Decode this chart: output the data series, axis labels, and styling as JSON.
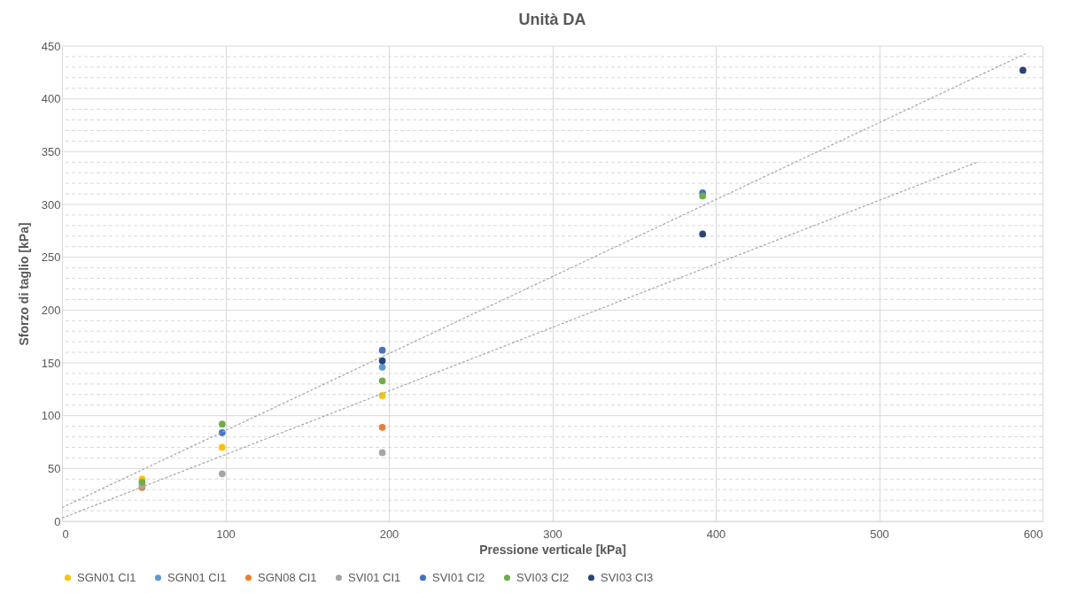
{
  "chart_data": {
    "type": "scatter",
    "title": "Unità DA",
    "xlabel": "Pressione verticale [kPa]",
    "ylabel": "Sforzo di taglio [kPa]",
    "xlim": [
      0,
      600
    ],
    "xticks": [
      0,
      100,
      200,
      300,
      400,
      500,
      600
    ],
    "ylim": [
      0,
      450
    ],
    "yticks": [
      0,
      {
        "value": 10,
        "label": null
      },
      {
        "value": 20,
        "label": null
      },
      {
        "value": 30,
        "label": null
      },
      {
        "value": 40,
        "label": null
      },
      50,
      {
        "value": 60,
        "label": null
      },
      {
        "value": 70,
        "label": null
      },
      {
        "value": 80,
        "label": null
      },
      {
        "value": 90,
        "label": null
      },
      100,
      {
        "value": 110,
        "label": null
      },
      {
        "value": 120,
        "label": null
      },
      {
        "value": 130,
        "label": null
      },
      {
        "value": 140,
        "label": null
      },
      150,
      {
        "value": 160,
        "label": null
      },
      {
        "value": 170,
        "label": null
      },
      {
        "value": 180,
        "label": null
      },
      {
        "value": 190,
        "label": null
      },
      200,
      {
        "value": 210,
        "label": null
      },
      {
        "value": 220,
        "label": null
      },
      {
        "value": 230,
        "label": null
      },
      {
        "value": 240,
        "label": null
      },
      250,
      {
        "value": 260,
        "label": null
      },
      {
        "value": 270,
        "label": null
      },
      {
        "value": 280,
        "label": null
      },
      {
        "value": 290,
        "label": null
      },
      300,
      {
        "value": 310,
        "label": null
      },
      {
        "value": 320,
        "label": null
      },
      {
        "value": 330,
        "label": null
      },
      {
        "value": 340,
        "label": null
      },
      350,
      {
        "value": 360,
        "label": null
      },
      {
        "value": 370,
        "label": null
      },
      {
        "value": 380,
        "label": null
      },
      {
        "value": 390,
        "label": null
      },
      400,
      {
        "value": 410,
        "label": null
      },
      {
        "value": 420,
        "label": null
      },
      {
        "value": 430,
        "label": null
      },
      {
        "value": 440,
        "label": null
      },
      450
    ],
    "grid": true,
    "legend": "bottom",
    "marker": "circle",
    "series": [
      {
        "name": "SGN01 CI1",
        "color": "#ffc000",
        "x": [
          49,
          98,
          196
        ],
        "values": [
          40,
          70,
          119
        ]
      },
      {
        "name": "SGN01 CI1",
        "color": "#5b9bd5",
        "x": [
          196
        ],
        "values": [
          146
        ]
      },
      {
        "name": "SGN08 CI1",
        "color": "#ed7d31",
        "x": [
          49,
          196
        ],
        "values": [
          32,
          89
        ]
      },
      {
        "name": "SVI01 CI1",
        "color": "#a5a5a5",
        "x": [
          49,
          98,
          196
        ],
        "values": [
          34,
          45,
          65
        ]
      },
      {
        "name": "SVI01 CI2",
        "color": "#4472c4",
        "x": [
          98,
          196,
          392
        ],
        "values": [
          84,
          162,
          311
        ]
      },
      {
        "name": "SVI03 CI2",
        "color": "#70ad47",
        "x": [
          49,
          98,
          196,
          392
        ],
        "values": [
          37,
          92,
          133,
          308
        ]
      },
      {
        "name": "SVI03 CI3",
        "color": "#264478",
        "x": [
          196,
          392,
          588
        ],
        "values": [
          152,
          272,
          427
        ]
      },
      {
        "type": "line",
        "color": "#a6a6a6",
        "line_style": "dashed",
        "marker": "none",
        "x": [
          0,
          590
        ],
        "values": [
          13,
          443
        ]
      },
      {
        "type": "line",
        "color": "#a6a6a6",
        "line_style": "dashed",
        "marker": "none",
        "x": [
          0,
          560
        ],
        "values": [
          3,
          340
        ]
      }
    ]
  }
}
